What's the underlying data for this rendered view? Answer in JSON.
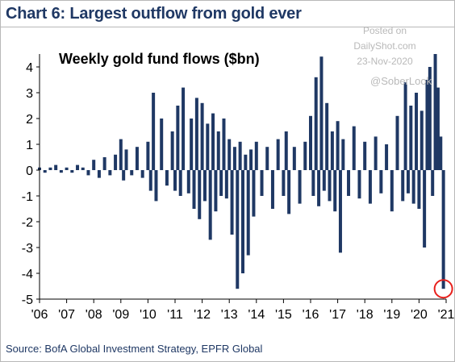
{
  "header": {
    "title": "Chart 6: Largest outflow from gold ever"
  },
  "watermark": {
    "line1": "Posted on",
    "line2": "DailyShot.com",
    "line3": "23-Nov-2020",
    "handle": "@SoberLook"
  },
  "source": "Source: BofA Global Investment Strategy, EPFR Global",
  "colors": {
    "bar": "#1f3864",
    "title": "#1f3864",
    "highlight": "#e8201c"
  },
  "chart_data": {
    "type": "bar",
    "title": "Weekly gold fund flows ($bn)",
    "xlabel": "",
    "ylabel": "",
    "ylim": [
      -5,
      4.5
    ],
    "yticks": [
      4,
      3,
      2,
      1,
      0,
      -1,
      -2,
      -3,
      -4,
      -5
    ],
    "ytick_labels": [
      "4",
      "3",
      "2",
      "1",
      "0",
      "-1",
      "-2",
      "-3",
      "-4",
      "-5"
    ],
    "xlim": [
      2006,
      2021
    ],
    "xticks": [
      2006,
      2007,
      2008,
      2009,
      2010,
      2011,
      2012,
      2013,
      2014,
      2015,
      2016,
      2017,
      2018,
      2019,
      2020,
      2021
    ],
    "xtick_labels": [
      "'06",
      "'07",
      "'08",
      "'09",
      "'10",
      "'11",
      "'12",
      "'13",
      "'14",
      "'15",
      "'16",
      "'17",
      "'18",
      "'19",
      "'20",
      "'21"
    ],
    "x_unit": "year",
    "series": [
      {
        "name": "",
        "x": [
          2006.0,
          2006.2,
          2006.4,
          2006.6,
          2006.8,
          2007.0,
          2007.2,
          2007.4,
          2007.6,
          2007.8,
          2008.0,
          2008.2,
          2008.4,
          2008.6,
          2008.8,
          2009.0,
          2009.1,
          2009.2,
          2009.4,
          2009.6,
          2009.8,
          2010.0,
          2010.1,
          2010.2,
          2010.3,
          2010.5,
          2010.7,
          2010.9,
          2011.0,
          2011.1,
          2011.2,
          2011.3,
          2011.5,
          2011.6,
          2011.7,
          2011.8,
          2011.9,
          2012.0,
          2012.1,
          2012.2,
          2012.3,
          2012.4,
          2012.5,
          2012.6,
          2012.7,
          2012.8,
          2012.9,
          2013.0,
          2013.1,
          2013.2,
          2013.3,
          2013.4,
          2013.5,
          2013.6,
          2013.7,
          2013.8,
          2013.9,
          2014.0,
          2014.2,
          2014.4,
          2014.6,
          2014.8,
          2015.0,
          2015.1,
          2015.2,
          2015.4,
          2015.6,
          2015.8,
          2016.0,
          2016.1,
          2016.2,
          2016.3,
          2016.4,
          2016.5,
          2016.6,
          2016.7,
          2016.8,
          2016.9,
          2017.0,
          2017.1,
          2017.2,
          2017.4,
          2017.6,
          2017.8,
          2018.0,
          2018.2,
          2018.4,
          2018.6,
          2018.8,
          2019.0,
          2019.2,
          2019.4,
          2019.5,
          2019.6,
          2019.7,
          2019.8,
          2019.9,
          2020.0,
          2020.1,
          2020.2,
          2020.3,
          2020.4,
          2020.5,
          2020.6,
          2020.7,
          2020.8,
          2020.9
        ],
        "values": [
          0.1,
          -0.1,
          0.1,
          0.2,
          -0.1,
          0.1,
          -0.1,
          0.2,
          0.1,
          -0.2,
          0.4,
          -0.3,
          0.5,
          -0.2,
          0.6,
          1.2,
          -0.4,
          0.8,
          -0.2,
          0.9,
          -0.3,
          1.1,
          -0.8,
          3.0,
          -1.2,
          2.0,
          -0.6,
          1.5,
          -0.8,
          2.5,
          -1.0,
          3.2,
          -0.9,
          2.0,
          -1.5,
          2.8,
          -1.9,
          2.6,
          -1.2,
          1.8,
          -2.7,
          2.2,
          -1.6,
          1.5,
          -1.0,
          2.0,
          -1.1,
          1.2,
          -2.5,
          0.9,
          -4.6,
          1.1,
          -4.0,
          0.6,
          -3.3,
          0.8,
          -1.8,
          1.1,
          -1.0,
          0.9,
          -1.5,
          1.2,
          -1.0,
          1.5,
          -1.7,
          0.9,
          -1.3,
          1.1,
          2.1,
          -1.0,
          3.6,
          -1.4,
          4.4,
          -0.8,
          2.6,
          -1.2,
          1.5,
          -1.6,
          1.9,
          -3.2,
          1.2,
          -1.0,
          1.7,
          -1.1,
          1.1,
          -1.3,
          1.3,
          -0.9,
          1.0,
          -1.6,
          2.1,
          -1.2,
          3.4,
          -0.9,
          2.5,
          -1.3,
          3.0,
          -1.5,
          2.3,
          -3.0,
          3.5,
          4.0,
          -1.0,
          4.5,
          3.2,
          1.3,
          -4.6
        ]
      }
    ],
    "annotations": [
      {
        "type": "circle",
        "x": 2020.9,
        "y": -4.6
      }
    ],
    "grid": false,
    "legend": "none"
  }
}
